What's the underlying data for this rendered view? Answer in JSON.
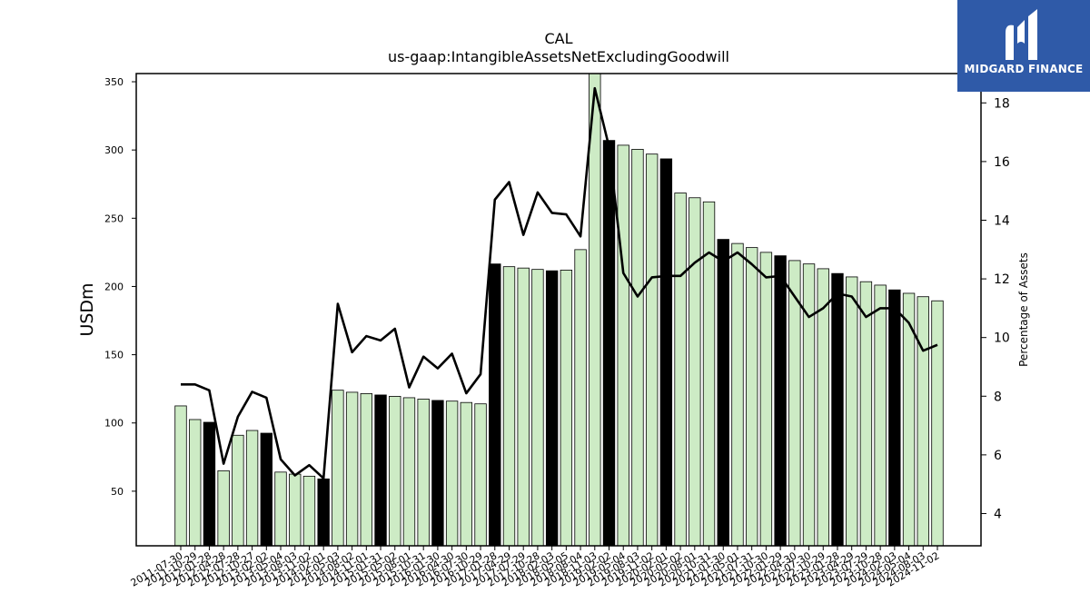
{
  "brand": {
    "name": "MIDGARD FINANCE",
    "logo_icon": "midgard-m-logo-icon",
    "bg_color": "#2f5aa8"
  },
  "chart_data": {
    "type": "bar",
    "title": "CAL",
    "subtitle": "us-gaap:IntangibleAssetsNetExcludingGoodwill",
    "ylabel": "USDm",
    "y2label": "Percentage of Assets",
    "ylim": [
      10,
      356
    ],
    "y2lim": [
      2.9,
      19.0
    ],
    "yticks": [
      50,
      100,
      150,
      200,
      250,
      300,
      350
    ],
    "y2ticks": [
      4,
      6,
      8,
      10,
      12,
      14,
      16,
      18
    ],
    "bar_color": "#cdebc5",
    "highlight_color": "#000000",
    "line_color": "#000000",
    "grid": false,
    "categories": [
      "2011-07-30",
      "2011-10-29",
      "2012-01-28",
      "2012-04-28",
      "2012-07-28",
      "2012-10-27",
      "2013-02-02",
      "2013-05-04",
      "2013-08-03",
      "2013-11-02",
      "2014-02-01",
      "2014-05-03",
      "2014-08-02",
      "2014-11-01",
      "2015-01-31",
      "2015-05-02",
      "2015-08-01",
      "2015-10-31",
      "2016-01-30",
      "2016-04-30",
      "2016-07-30",
      "2016-10-29",
      "2017-01-28",
      "2017-04-29",
      "2017-07-29",
      "2017-10-28",
      "2018-02-03",
      "2018-05-05",
      "2018-08-04",
      "2018-11-03",
      "2019-02-02",
      "2019-05-04",
      "2019-08-03",
      "2019-11-02",
      "2020-02-01",
      "2020-05-02",
      "2020-08-01",
      "2020-10-31",
      "2021-01-30",
      "2021-05-01",
      "2021-07-31",
      "2021-10-30",
      "2022-01-29",
      "2022-04-30",
      "2022-07-30",
      "2022-10-29",
      "2023-01-28",
      "2023-04-29",
      "2023-07-29",
      "2023-10-28",
      "2024-02-03",
      "2024-05-04",
      "2024-08-03",
      "2024-11-02"
    ],
    "values": [
      112.5,
      102.5,
      100.5,
      65.0,
      91.0,
      94.5,
      92.5,
      64.0,
      62.5,
      61.0,
      59.0,
      124.0,
      122.5,
      121.5,
      120.5,
      119.5,
      118.5,
      117.5,
      116.5,
      116.0,
      115.0,
      114.0,
      216.5,
      214.5,
      213.5,
      212.5,
      211.5,
      212.0,
      227.0,
      365.0,
      307.0,
      303.5,
      300.5,
      297.0,
      293.5,
      268.5,
      265.0,
      262.0,
      234.5,
      231.5,
      228.5,
      225.0,
      222.5,
      219.0,
      216.5,
      213.0,
      209.5,
      207.0,
      203.5,
      201.0,
      197.5,
      195.0,
      192.5,
      189.5
    ],
    "highlighted": [
      false,
      false,
      true,
      false,
      false,
      false,
      true,
      false,
      false,
      false,
      true,
      false,
      false,
      false,
      true,
      false,
      false,
      false,
      true,
      false,
      false,
      false,
      true,
      false,
      false,
      false,
      true,
      false,
      false,
      false,
      true,
      false,
      false,
      false,
      true,
      false,
      false,
      false,
      true,
      false,
      false,
      false,
      true,
      false,
      false,
      false,
      true,
      false,
      false,
      false,
      true,
      false,
      false,
      false
    ],
    "percent_of_assets": [
      8.4,
      8.4,
      8.2,
      5.7,
      7.3,
      8.15,
      7.95,
      5.85,
      5.3,
      5.65,
      5.2,
      11.15,
      9.5,
      10.05,
      9.9,
      10.3,
      8.3,
      9.35,
      8.95,
      9.45,
      8.1,
      8.75,
      14.7,
      15.3,
      13.5,
      14.95,
      14.25,
      14.2,
      13.45,
      18.5,
      16.5,
      12.2,
      11.4,
      12.05,
      12.1,
      12.1,
      12.55,
      12.9,
      12.6,
      12.9,
      12.5,
      12.05,
      12.1,
      11.4,
      10.7,
      11.0,
      11.5,
      11.4,
      10.7,
      11.0,
      11.0,
      10.5,
      9.55,
      9.75
    ]
  }
}
